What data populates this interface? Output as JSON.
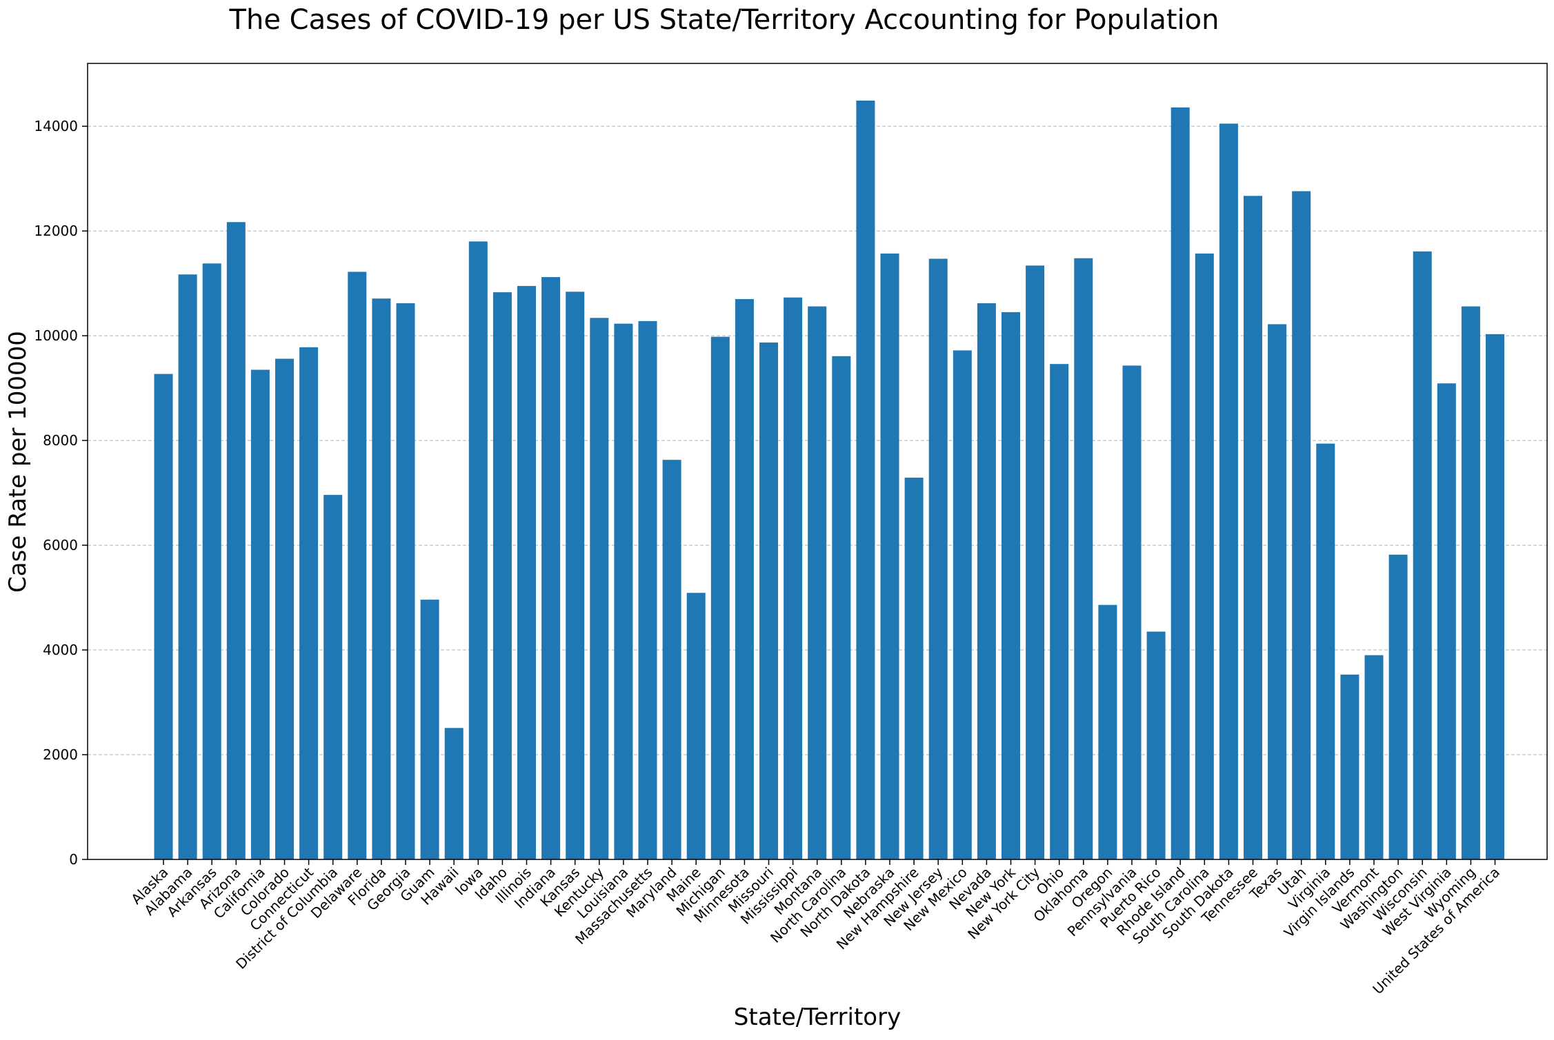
{
  "chart_data": {
    "type": "bar",
    "title": "The Cases of COVID-19 per US State/Territory Accounting for Population",
    "xlabel": "State/Territory",
    "ylabel": "Case Rate per 100000",
    "ylim": [
      0,
      15200
    ],
    "yticks": [
      0,
      2000,
      4000,
      6000,
      8000,
      10000,
      12000,
      14000
    ],
    "ytick_labels": [
      "0",
      "2000",
      "4000",
      "6000",
      "8000",
      "10000",
      "12000",
      "14000"
    ],
    "grid": "y-dashed",
    "bar_color": "#1f77b4",
    "categories": [
      "Alaska",
      "Alabama",
      "Arkansas",
      "Arizona",
      "California",
      "Colorado",
      "Connecticut",
      "District of Columbia",
      "Delaware",
      "Florida",
      "Georgia",
      "Guam",
      "Hawaii",
      "Iowa",
      "Idaho",
      "Illinois",
      "Indiana",
      "Kansas",
      "Kentucky",
      "Louisiana",
      "Massachusetts",
      "Maryland",
      "Maine",
      "Michigan",
      "Minnesota",
      "Missouri",
      "Mississippi",
      "Montana",
      "North Carolina",
      "North Dakota",
      "Nebraska",
      "New Hampshire",
      "New Jersey",
      "New Mexico",
      "Nevada",
      "New York",
      "New York City",
      "Ohio",
      "Oklahoma",
      "Oregon",
      "Pennsylvania",
      "Puerto Rico",
      "Rhode Island",
      "South Carolina",
      "South Dakota",
      "Tennessee",
      "Texas",
      "Utah",
      "Virginia",
      "Virgin Islands",
      "Vermont",
      "Washington",
      "Wisconsin",
      "West Virginia",
      "Wyoming",
      "United States of America"
    ],
    "values": [
      9270,
      11170,
      11380,
      12170,
      9350,
      9560,
      9780,
      6960,
      11220,
      10710,
      10620,
      4960,
      2510,
      11800,
      10830,
      10950,
      11120,
      10840,
      10340,
      10230,
      10280,
      7630,
      5090,
      9980,
      10700,
      9870,
      10730,
      10560,
      9610,
      14490,
      11570,
      7290,
      11470,
      9720,
      10620,
      10450,
      11340,
      9460,
      11480,
      4860,
      9430,
      4350,
      14360,
      11570,
      14050,
      12670,
      10220,
      12760,
      7940,
      3530,
      3900,
      5820,
      11610,
      9090,
      10560,
      10030
    ]
  }
}
